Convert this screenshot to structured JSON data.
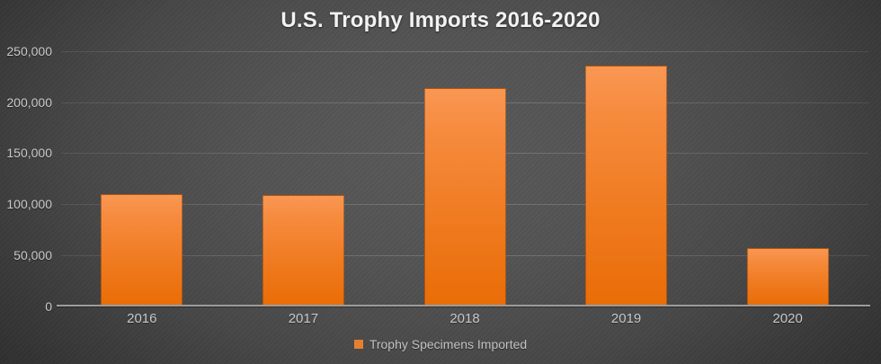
{
  "chart_data": {
    "type": "bar",
    "title": "U.S. Trophy Imports 2016-2020",
    "categories": [
      "2016",
      "2017",
      "2018",
      "2019",
      "2020"
    ],
    "series": [
      {
        "name": "Trophy Specimens Imported",
        "values": [
          110000,
          108500,
          213500,
          236000,
          56500
        ]
      }
    ],
    "xlabel": "",
    "ylabel": "",
    "ylim": [
      0,
      250000
    ],
    "yticks": [
      0,
      50000,
      100000,
      150000,
      200000,
      250000
    ],
    "ytick_labels": [
      "0",
      "50,000",
      "100,000",
      "150,000",
      "200,000",
      "250,000"
    ],
    "grid": true,
    "legend_position": "bottom",
    "colors": {
      "bar_top": "#F99753",
      "bar_bottom": "#EA6D07",
      "legend_marker": "#E6802F",
      "title_text": "#F2F2F2",
      "axis_text": "#C9C9C9",
      "axis_line": "#9C9C9C",
      "background_center": "#595959",
      "background_edge": "#242323"
    }
  }
}
